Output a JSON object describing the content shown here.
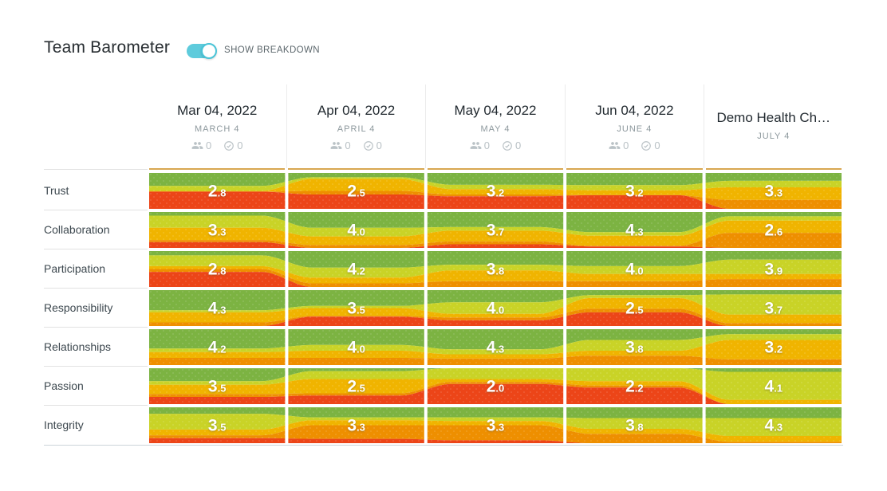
{
  "title": "Team Barometer",
  "toggle": {
    "label": "SHOW BREAKDOWN",
    "state": "on",
    "accent_color": "#5ecbdc"
  },
  "header_icons": {
    "participants": "group-icon",
    "responses": "check-circle-icon"
  },
  "columns": [
    {
      "title": "Mar 04, 2022",
      "subtitle": "MARCH 4",
      "participants": "0",
      "responses": "0"
    },
    {
      "title": "Apr 04, 2022",
      "subtitle": "APRIL 4",
      "participants": "0",
      "responses": "0"
    },
    {
      "title": "May 04, 2022",
      "subtitle": "MAY 4",
      "participants": "0",
      "responses": "0"
    },
    {
      "title": "Jun 04, 2022",
      "subtitle": "JUNE 4",
      "participants": "0",
      "responses": "0"
    },
    {
      "title": "Demo Health Ch…",
      "subtitle": "JULY 4"
    }
  ],
  "rows": [
    {
      "label": "Trust",
      "key": "trust",
      "cells": [
        {
          "value": "2.8",
          "bands": [
            0.36,
            0.14,
            0.02,
            0.0,
            0.48
          ]
        },
        {
          "value": "2.5",
          "bands": [
            0.12,
            0.05,
            0.33,
            0.1,
            0.4
          ]
        },
        {
          "value": "3.2",
          "bands": [
            0.33,
            0.12,
            0.15,
            0.05,
            0.35
          ]
        },
        {
          "value": "3.2",
          "bands": [
            0.34,
            0.14,
            0.14,
            0.0,
            0.38
          ]
        },
        {
          "value": "3.3",
          "bands": [
            0.22,
            0.18,
            0.35,
            0.25,
            0.0
          ]
        }
      ]
    },
    {
      "label": "Collaboration",
      "key": "collaboration",
      "cells": [
        {
          "value": "3.3",
          "bands": [
            0.1,
            0.34,
            0.34,
            0.06,
            0.16
          ]
        },
        {
          "value": "4.0",
          "bands": [
            0.44,
            0.24,
            0.24,
            0.08,
            0.0
          ]
        },
        {
          "value": "3.7",
          "bands": [
            0.42,
            0.1,
            0.3,
            0.08,
            0.1
          ]
        },
        {
          "value": "4.3",
          "bands": [
            0.56,
            0.1,
            0.28,
            0.02,
            0.04
          ]
        },
        {
          "value": "2.6",
          "bands": [
            0.12,
            0.12,
            0.34,
            0.42,
            0.0
          ]
        }
      ]
    },
    {
      "label": "Participation",
      "key": "participation",
      "cells": [
        {
          "value": "2.8",
          "bands": [
            0.12,
            0.3,
            0.08,
            0.08,
            0.42
          ]
        },
        {
          "value": "4.2",
          "bands": [
            0.46,
            0.28,
            0.16,
            0.1,
            0.0
          ]
        },
        {
          "value": "3.8",
          "bands": [
            0.38,
            0.16,
            0.3,
            0.16,
            0.0
          ]
        },
        {
          "value": "4.0",
          "bands": [
            0.42,
            0.22,
            0.2,
            0.16,
            0.0
          ]
        },
        {
          "value": "3.9",
          "bands": [
            0.24,
            0.4,
            0.14,
            0.22,
            0.0
          ]
        }
      ]
    },
    {
      "label": "Responsibility",
      "key": "responsibility",
      "cells": [
        {
          "value": "4.3",
          "bands": [
            0.56,
            0.06,
            0.28,
            0.1,
            0.0
          ]
        },
        {
          "value": "3.5",
          "bands": [
            0.44,
            0.06,
            0.22,
            0.02,
            0.26
          ]
        },
        {
          "value": "4.0",
          "bands": [
            0.34,
            0.32,
            0.1,
            0.08,
            0.16
          ]
        },
        {
          "value": "2.5",
          "bands": [
            0.14,
            0.08,
            0.3,
            0.1,
            0.38
          ]
        },
        {
          "value": "3.7",
          "bands": [
            0.12,
            0.56,
            0.24,
            0.08,
            0.0
          ]
        }
      ]
    },
    {
      "label": "Relationships",
      "key": "relationships",
      "cells": [
        {
          "value": "4.2",
          "bands": [
            0.54,
            0.1,
            0.16,
            0.2,
            0.0
          ]
        },
        {
          "value": "4.0",
          "bands": [
            0.44,
            0.16,
            0.2,
            0.2,
            0.0
          ]
        },
        {
          "value": "4.3",
          "bands": [
            0.56,
            0.14,
            0.12,
            0.18,
            0.0
          ]
        },
        {
          "value": "3.8",
          "bands": [
            0.3,
            0.3,
            0.14,
            0.26,
            0.0
          ]
        },
        {
          "value": "3.2",
          "bands": [
            0.14,
            0.16,
            0.54,
            0.16,
            0.0
          ]
        }
      ]
    },
    {
      "label": "Passion",
      "key": "passion",
      "cells": [
        {
          "value": "3.5",
          "bands": [
            0.36,
            0.1,
            0.26,
            0.08,
            0.2
          ]
        },
        {
          "value": "2.5",
          "bands": [
            0.08,
            0.22,
            0.4,
            0.06,
            0.24
          ]
        },
        {
          "value": "2.0",
          "bands": [
            0.0,
            0.3,
            0.08,
            0.06,
            0.56
          ]
        },
        {
          "value": "2.2",
          "bands": [
            0.0,
            0.36,
            0.12,
            0.06,
            0.46
          ]
        },
        {
          "value": "4.1",
          "bands": [
            0.1,
            0.78,
            0.12,
            0.0,
            0.0
          ]
        }
      ]
    },
    {
      "label": "Integrity",
      "key": "integrity",
      "cells": [
        {
          "value": "3.5",
          "bands": [
            0.18,
            0.44,
            0.16,
            0.08,
            0.14
          ]
        },
        {
          "value": "3.3",
          "bands": [
            0.28,
            0.08,
            0.14,
            0.38,
            0.12
          ]
        },
        {
          "value": "3.3",
          "bands": [
            0.28,
            0.1,
            0.12,
            0.42,
            0.08
          ]
        },
        {
          "value": "3.8",
          "bands": [
            0.3,
            0.3,
            0.14,
            0.26,
            0.0
          ]
        },
        {
          "value": "4.3",
          "bands": [
            0.3,
            0.5,
            0.16,
            0.04,
            0.0
          ]
        }
      ]
    }
  ],
  "colors": {
    "levels": [
      "#7cb342",
      "#c9d327",
      "#f0b400",
      "#ee8f00",
      "#ec4518"
    ],
    "level_names": [
      "excellent",
      "good",
      "average",
      "poor",
      "bad"
    ],
    "accent": "#5ecbdc",
    "header_underline": "#d8a750",
    "separator": "#ececec",
    "value_text": "#ffffff"
  },
  "chart_data": {
    "type": "area",
    "title": "Team Barometer",
    "categories": [
      "Mar 04, 2022",
      "Apr 04, 2022",
      "May 04, 2022",
      "Jun 04, 2022",
      "Demo Health Ch…"
    ],
    "series": [
      {
        "name": "Trust",
        "values": [
          2.8,
          2.5,
          3.2,
          3.2,
          3.3
        ]
      },
      {
        "name": "Collaboration",
        "values": [
          3.3,
          4.0,
          3.7,
          4.3,
          2.6
        ]
      },
      {
        "name": "Participation",
        "values": [
          2.8,
          4.2,
          3.8,
          4.0,
          3.9
        ]
      },
      {
        "name": "Responsibility",
        "values": [
          4.3,
          3.5,
          4.0,
          2.5,
          3.7
        ]
      },
      {
        "name": "Relationships",
        "values": [
          4.2,
          4.0,
          4.3,
          3.8,
          3.2
        ]
      },
      {
        "name": "Passion",
        "values": [
          3.5,
          2.5,
          2.0,
          2.2,
          4.1
        ]
      },
      {
        "name": "Integrity",
        "values": [
          3.5,
          3.3,
          3.3,
          3.8,
          4.3
        ]
      }
    ],
    "value_scale": [
      1,
      5
    ],
    "legend_position": "none",
    "grid": false
  }
}
